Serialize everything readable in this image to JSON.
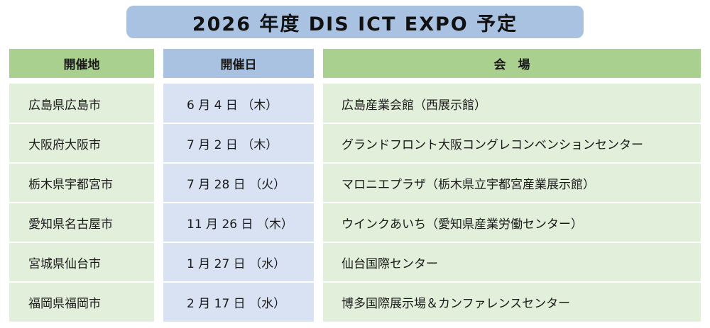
{
  "title": "2026 年度 DIS ICT EXPO 予定",
  "headers": {
    "location": "開催地",
    "date": "開催日",
    "venue": "会　場"
  },
  "rows": [
    {
      "location": "広島県広島市",
      "date": "6 月 4 日 （木）",
      "venue": "広島産業会館（西展示館）"
    },
    {
      "location": "大阪府大阪市",
      "date": "7 月 2 日 （木）",
      "venue": "グランドフロント大阪コングレコンベンションセンター"
    },
    {
      "location": "栃木県宇都宮市",
      "date": "7 月 28 日 （火）",
      "venue": "マロニエプラザ（栃木県立宇都宮産業展示館）"
    },
    {
      "location": "愛知県名古屋市",
      "date": "11 月 26 日 （木）",
      "venue": "ウインクあいち（愛知県産業労働センター）"
    },
    {
      "location": "宮城県仙台市",
      "date": "1 月 27 日 （水）",
      "venue": "仙台国際センター"
    },
    {
      "location": "福岡県福岡市",
      "date": "2 月 17 日 （水）",
      "venue": "博多国際展示場＆カンファレンスセンター"
    }
  ],
  "colors": {
    "title_bg": "#a9c2e2",
    "header_green": "#a9d08e",
    "header_blue": "#a9c2e2",
    "body_green": "#e2efda",
    "body_blue": "#d9e2f2"
  }
}
